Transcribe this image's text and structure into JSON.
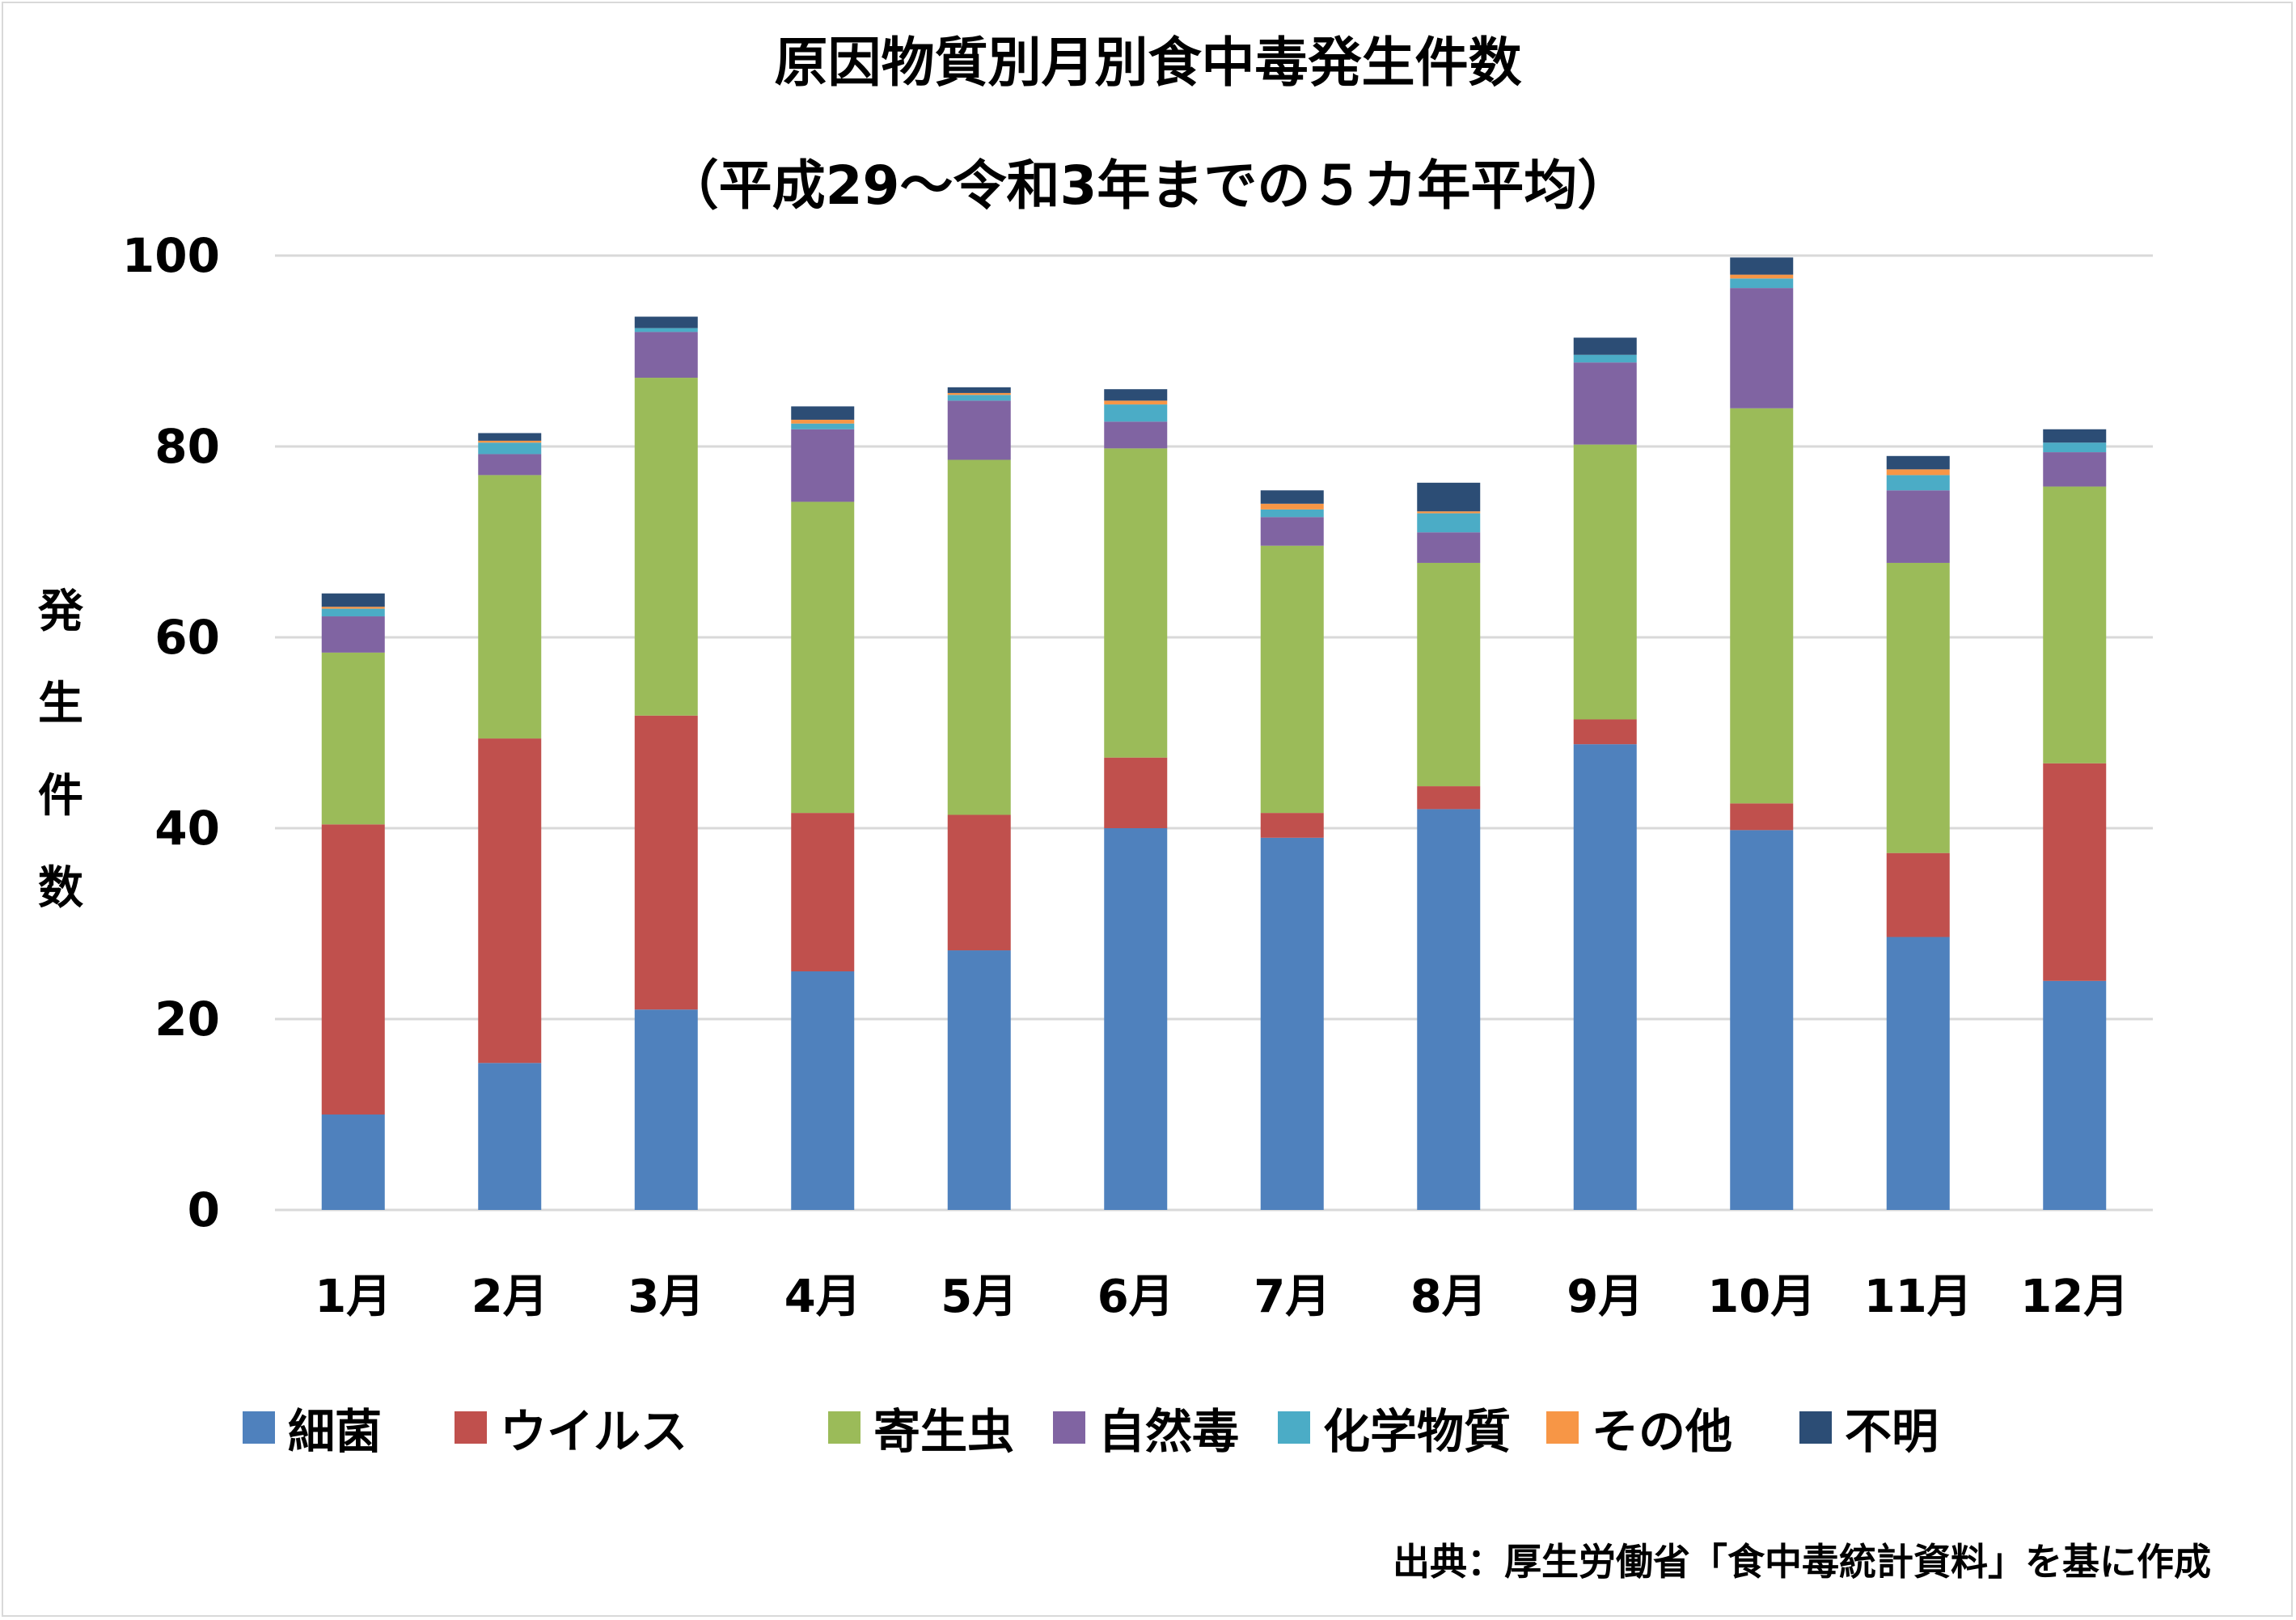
{
  "chart_data": {
    "type": "bar",
    "stacked": true,
    "title": "原因物質別月別食中毒発生件数",
    "subtitle": "（平成29～令和3年までの５カ年平均）",
    "ylabel": "発生件数",
    "ylim": [
      0,
      100
    ],
    "yticks": [
      "0",
      "20",
      "40",
      "60",
      "80",
      "100"
    ],
    "grid": true,
    "legend_position": "bottom",
    "categories": [
      "1月",
      "2月",
      "3月",
      "4月",
      "5月",
      "6月",
      "7月",
      "8月",
      "9月",
      "10月",
      "11月",
      "12月"
    ],
    "series": [
      {
        "name": "細菌",
        "color": "#4f81bd",
        "values": [
          10.0,
          15.4,
          21.0,
          25.0,
          27.2,
          40.0,
          39.0,
          42.0,
          48.8,
          39.8,
          28.6,
          24.0
        ]
      },
      {
        "name": "ウイルス",
        "color": "#c0504d",
        "values": [
          30.4,
          34.0,
          30.8,
          16.6,
          14.2,
          7.4,
          2.6,
          2.4,
          2.6,
          2.8,
          8.8,
          22.8
        ]
      },
      {
        "name": "寄生虫",
        "color": "#9bbb59",
        "values": [
          18.0,
          27.6,
          35.4,
          32.6,
          37.2,
          32.4,
          28.0,
          23.4,
          28.8,
          41.4,
          30.4,
          29.0
        ]
      },
      {
        "name": "自然毒",
        "color": "#8064a2",
        "values": [
          3.8,
          2.2,
          4.8,
          7.6,
          6.2,
          2.8,
          3.0,
          3.2,
          8.6,
          12.6,
          7.6,
          3.6
        ]
      },
      {
        "name": "化学物質",
        "color": "#4bacc6",
        "values": [
          0.8,
          1.2,
          0.4,
          0.6,
          0.6,
          1.8,
          0.8,
          2.0,
          0.8,
          1.0,
          1.6,
          1.0
        ]
      },
      {
        "name": "その他",
        "color": "#f79646",
        "values": [
          0.2,
          0.2,
          0.0,
          0.4,
          0.2,
          0.4,
          0.6,
          0.2,
          0.0,
          0.4,
          0.6,
          0.0
        ]
      },
      {
        "name": "不明",
        "color": "#2c4d75",
        "values": [
          1.4,
          0.8,
          1.2,
          1.4,
          0.6,
          1.2,
          1.4,
          3.0,
          1.8,
          1.8,
          1.4,
          1.4
        ]
      }
    ]
  },
  "source": "出典：厚生労働省「食中毒統計資料」を基に作成"
}
